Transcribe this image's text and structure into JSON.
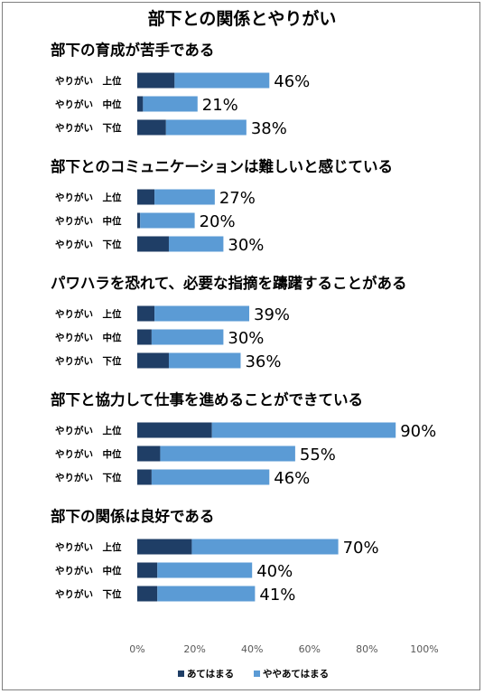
{
  "chart_data": {
    "type": "bar",
    "orientation": "horizontal",
    "stacked": true,
    "title": "部下との関係とやりがい",
    "series": [
      {
        "name": "あてはまる",
        "color": "#1f3e66"
      },
      {
        "name": "ややあてはまる",
        "color": "#5b9bd5"
      }
    ],
    "categories": [
      "やりがい　上位",
      "やりがい　中位",
      "やりがい　下位"
    ],
    "groups": [
      {
        "title": "部下の育成が苦手である",
        "rows": [
          {
            "category": "やりがい　上位",
            "values": [
              13,
              33
            ],
            "total_label": "46%"
          },
          {
            "category": "やりがい　中位",
            "values": [
              2,
              19
            ],
            "total_label": "21%"
          },
          {
            "category": "やりがい　下位",
            "values": [
              10,
              28
            ],
            "total_label": "38%"
          }
        ]
      },
      {
        "title": "部下とのコミュニケーションは難しいと感じている",
        "rows": [
          {
            "category": "やりがい　上位",
            "values": [
              6,
              21
            ],
            "total_label": "27%"
          },
          {
            "category": "やりがい　中位",
            "values": [
              1,
              19
            ],
            "total_label": "20%"
          },
          {
            "category": "やりがい　下位",
            "values": [
              11,
              19
            ],
            "total_label": "30%"
          }
        ]
      },
      {
        "title": "パワハラを恐れて、必要な指摘を躊躇することがある",
        "rows": [
          {
            "category": "やりがい　上位",
            "values": [
              6,
              33
            ],
            "total_label": "39%"
          },
          {
            "category": "やりがい　中位",
            "values": [
              5,
              25
            ],
            "total_label": "30%"
          },
          {
            "category": "やりがい　下位",
            "values": [
              11,
              25
            ],
            "total_label": "36%"
          }
        ]
      },
      {
        "title": "部下と協力して仕事を進めることができている",
        "rows": [
          {
            "category": "やりがい　上位",
            "values": [
              26,
              64
            ],
            "total_label": "90%"
          },
          {
            "category": "やりがい　中位",
            "values": [
              8,
              47
            ],
            "total_label": "55%"
          },
          {
            "category": "やりがい　下位",
            "values": [
              5,
              41
            ],
            "total_label": "46%"
          }
        ]
      },
      {
        "title": "部下の関係は良好である",
        "rows": [
          {
            "category": "やりがい　上位",
            "values": [
              19,
              51
            ],
            "total_label": "70%"
          },
          {
            "category": "やりがい　中位",
            "values": [
              7,
              33
            ],
            "total_label": "40%"
          },
          {
            "category": "やりがい　下位",
            "values": [
              7,
              34
            ],
            "total_label": "41%"
          }
        ]
      }
    ],
    "xaxis": {
      "ticks": [
        "0%",
        "20%",
        "40%",
        "60%",
        "80%",
        "100%"
      ],
      "xlim": [
        0,
        100
      ]
    },
    "grid": false,
    "legend_position": "bottom"
  }
}
